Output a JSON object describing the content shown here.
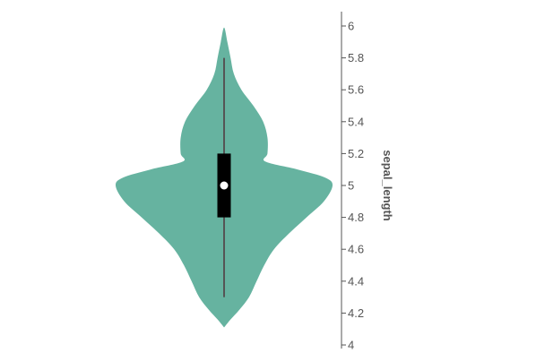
{
  "chart_data": {
    "type": "violin",
    "ylabel": "sepal_length",
    "ylim": [
      4,
      6.1
    ],
    "y_ticks": [
      "4",
      "4.2",
      "4.4",
      "4.6",
      "4.8",
      "5",
      "5.2",
      "5.4",
      "5.6",
      "5.8",
      "6"
    ],
    "y_tick_values": [
      4,
      4.2,
      4.4,
      4.6,
      4.8,
      5,
      5.2,
      5.4,
      5.6,
      5.8,
      6
    ],
    "y_axis_position": "right",
    "density_color": "#66b3a0",
    "box_color": "#000000",
    "median_color": "#ffffff",
    "whisker_color": "#555555",
    "min": 4.3,
    "max": 5.8,
    "q1": 4.8,
    "median": 5.0,
    "q3": 5.2,
    "kde_extent": [
      4.11,
      5.99
    ],
    "density_profile": [
      {
        "y": 4.11,
        "w": 0.0
      },
      {
        "y": 4.16,
        "w": 0.06
      },
      {
        "y": 4.22,
        "w": 0.14
      },
      {
        "y": 4.3,
        "w": 0.23
      },
      {
        "y": 4.4,
        "w": 0.3
      },
      {
        "y": 4.5,
        "w": 0.37
      },
      {
        "y": 4.6,
        "w": 0.46
      },
      {
        "y": 4.7,
        "w": 0.6
      },
      {
        "y": 4.8,
        "w": 0.76
      },
      {
        "y": 4.9,
        "w": 0.92
      },
      {
        "y": 5.0,
        "w": 1.0
      },
      {
        "y": 5.05,
        "w": 0.93
      },
      {
        "y": 5.1,
        "w": 0.68
      },
      {
        "y": 5.15,
        "w": 0.38
      },
      {
        "y": 5.2,
        "w": 0.4
      },
      {
        "y": 5.3,
        "w": 0.4
      },
      {
        "y": 5.4,
        "w": 0.36
      },
      {
        "y": 5.5,
        "w": 0.27
      },
      {
        "y": 5.6,
        "w": 0.16
      },
      {
        "y": 5.7,
        "w": 0.09
      },
      {
        "y": 5.8,
        "w": 0.06
      },
      {
        "y": 5.9,
        "w": 0.03
      },
      {
        "y": 5.99,
        "w": 0.0
      }
    ]
  }
}
